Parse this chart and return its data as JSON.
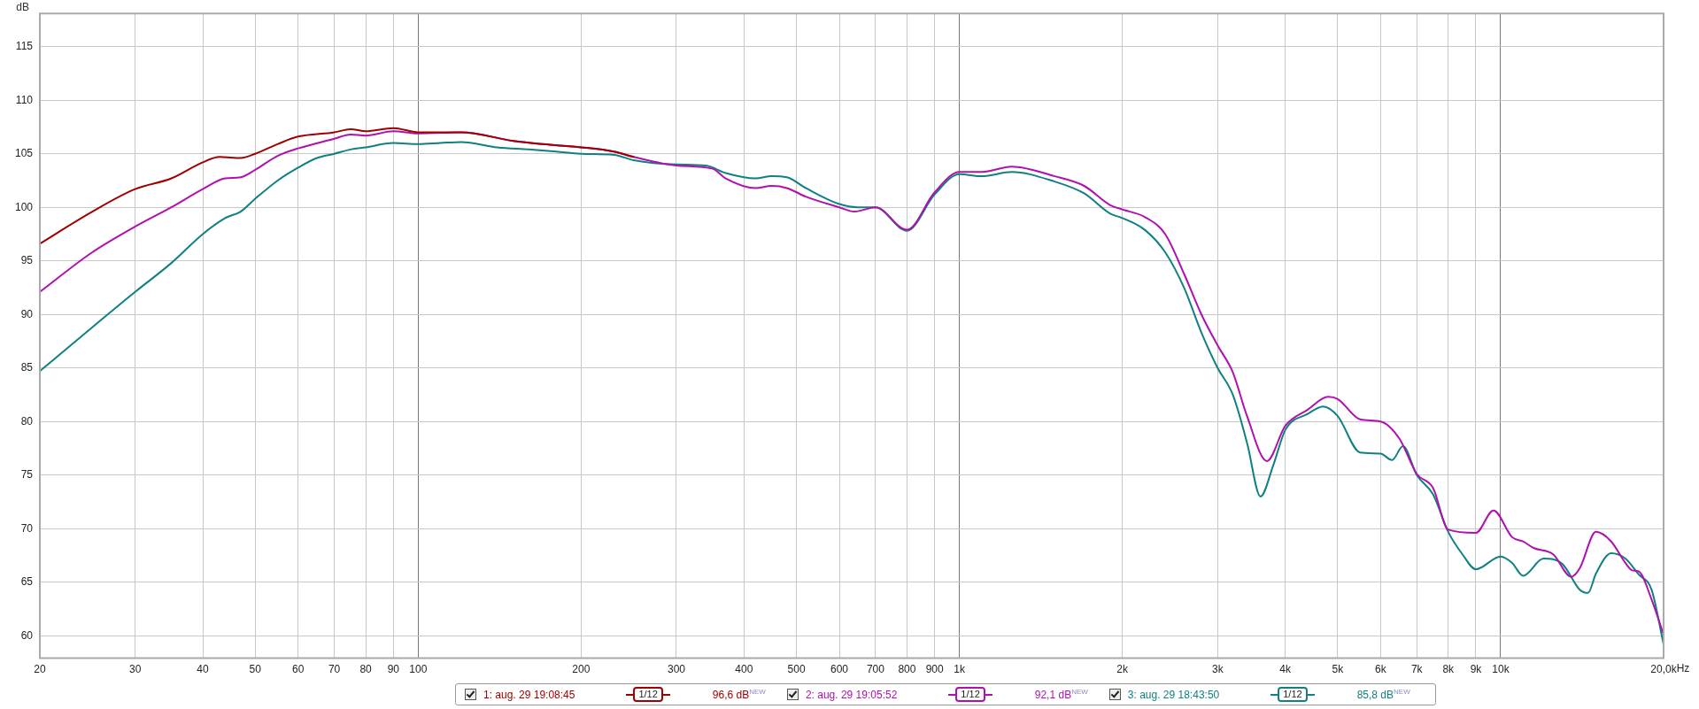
{
  "chart_data": {
    "type": "line",
    "ylabel": "dB",
    "log": "x",
    "grid": true,
    "legend": "bottom",
    "marker": "none",
    "line_style": "solid",
    "xlim": [
      20,
      20000
    ],
    "ylim": [
      57.9,
      118.1
    ],
    "xticks": [
      20,
      30,
      40,
      50,
      60,
      70,
      80,
      90,
      100,
      200,
      300,
      400,
      500,
      600,
      700,
      800,
      900,
      {
        "value": 1000,
        "label": "1k"
      },
      {
        "value": 2000,
        "label": "2k"
      },
      {
        "value": 3000,
        "label": "3k"
      },
      {
        "value": 4000,
        "label": "4k"
      },
      {
        "value": 5000,
        "label": "5k"
      },
      {
        "value": 6000,
        "label": "6k"
      },
      {
        "value": 7000,
        "label": "7k"
      },
      {
        "value": 8000,
        "label": "8k"
      },
      {
        "value": 9000,
        "label": "9k"
      },
      {
        "value": 10000,
        "label": "10k"
      },
      {
        "value": 20000,
        "label": "20,0k"
      }
    ],
    "xlabel": "Hz",
    "yticks": [
      60,
      65,
      70,
      75,
      80,
      85,
      90,
      95,
      100,
      105,
      110,
      115
    ],
    "annotations": [
      "1/12",
      "96,6 dB$^{NEW}$",
      "1/12",
      "92,1 dB$^{NEW}$",
      "1/12",
      "85,8 dB$^{NEW}$"
    ],
    "series": [
      {
        "name": "1: aug. 29 19:08:45",
        "color": "#a00000",
        "x": [
          20,
          25,
          30,
          35,
          40,
          43,
          47,
          50,
          55,
          60,
          70,
          75,
          80,
          90,
          100,
          120,
          150,
          170,
          200,
          230,
          250
        ],
        "values": [
          96.6,
          99.6,
          101.7,
          102.7,
          104.2,
          104.7,
          104.6,
          105.0,
          105.9,
          106.6,
          107.0,
          107.3,
          107.1,
          107.4,
          107.0,
          107.0,
          106.2,
          105.9,
          105.6,
          105.2,
          104.7
        ]
      },
      {
        "name": "2: aug. 29 19:05:52",
        "color": "#b010b0",
        "x": [
          20,
          25,
          30,
          35,
          40,
          44,
          47,
          50,
          55,
          60,
          70,
          75,
          80,
          90,
          100,
          120,
          150,
          170,
          200,
          230,
          250,
          300,
          350,
          370,
          420,
          450,
          480,
          520,
          600,
          640,
          700,
          800,
          900,
          1000,
          1100,
          1250,
          1500,
          1700,
          1900,
          2000,
          2200,
          2400,
          2600,
          2800,
          3000,
          3200,
          3400,
          3700,
          4000,
          4400,
          4800,
          5000,
          5500,
          6000,
          6500,
          7000,
          7500,
          8000,
          9000,
          9700,
          10500,
          11000,
          11500,
          12500,
          13500,
          14000,
          15000,
          16000,
          17000,
          17500,
          18000,
          19000,
          20000
        ],
        "values": [
          92.1,
          95.8,
          98.2,
          100.0,
          101.7,
          102.7,
          102.8,
          103.5,
          104.8,
          105.5,
          106.4,
          106.8,
          106.7,
          107.1,
          106.9,
          107.0,
          106.2,
          105.9,
          105.6,
          105.2,
          104.7,
          103.9,
          103.6,
          102.7,
          101.8,
          102.0,
          101.8,
          101.0,
          100.0,
          99.6,
          100.0,
          97.9,
          101.4,
          103.3,
          103.3,
          103.8,
          102.9,
          102.0,
          100.2,
          99.8,
          99.1,
          97.5,
          93.8,
          90.0,
          87.1,
          84.6,
          80.5,
          76.3,
          79.6,
          81.1,
          82.3,
          82.1,
          80.2,
          80.0,
          78.4,
          75.1,
          73.8,
          69.9,
          69.6,
          71.7,
          69.2,
          68.8,
          68.2,
          67.6,
          65.5,
          66.3,
          69.7,
          68.8,
          66.8,
          66.1,
          66.0,
          63.4,
          60.1
        ]
      },
      {
        "name": "3: aug. 29 18:43:50",
        "color": "#108080",
        "x": [
          20,
          25,
          30,
          35,
          40,
          44,
          47,
          50,
          55,
          60,
          65,
          70,
          75,
          80,
          90,
          100,
          110,
          120,
          140,
          160,
          180,
          200,
          230,
          250,
          300,
          340,
          370,
          420,
          450,
          480,
          520,
          600,
          650,
          700,
          800,
          900,
          1000,
          1100,
          1250,
          1500,
          1700,
          1900,
          2000,
          2200,
          2400,
          2600,
          2800,
          3000,
          3200,
          3400,
          3600,
          3800,
          4000,
          4400,
          4700,
          5000,
          5500,
          6000,
          6300,
          6600,
          7000,
          7500,
          8000,
          8500,
          9000,
          10000,
          10500,
          11000,
          12000,
          13000,
          14000,
          14500,
          15000,
          16000,
          17000,
          18000,
          19000,
          20000
        ],
        "values": [
          84.7,
          88.8,
          92.1,
          94.8,
          97.5,
          99.0,
          99.6,
          100.8,
          102.5,
          103.7,
          104.6,
          105.0,
          105.4,
          105.6,
          106.0,
          105.9,
          106.0,
          106.1,
          105.6,
          105.4,
          105.2,
          105.0,
          104.9,
          104.4,
          104.0,
          103.9,
          103.2,
          102.7,
          102.9,
          102.8,
          101.8,
          100.3,
          100.0,
          100.0,
          97.8,
          101.2,
          103.1,
          102.9,
          103.3,
          102.4,
          101.3,
          99.4,
          99.0,
          97.9,
          95.8,
          92.5,
          88.3,
          85.0,
          82.5,
          78.0,
          73.0,
          75.9,
          79.2,
          80.7,
          81.4,
          80.5,
          77.1,
          77.0,
          76.4,
          77.7,
          75.0,
          73.2,
          69.7,
          67.6,
          66.2,
          67.4,
          66.8,
          65.6,
          67.2,
          66.7,
          64.3,
          64.0,
          65.8,
          67.7,
          67.2,
          65.7,
          64.3,
          59.2
        ]
      }
    ]
  }
}
